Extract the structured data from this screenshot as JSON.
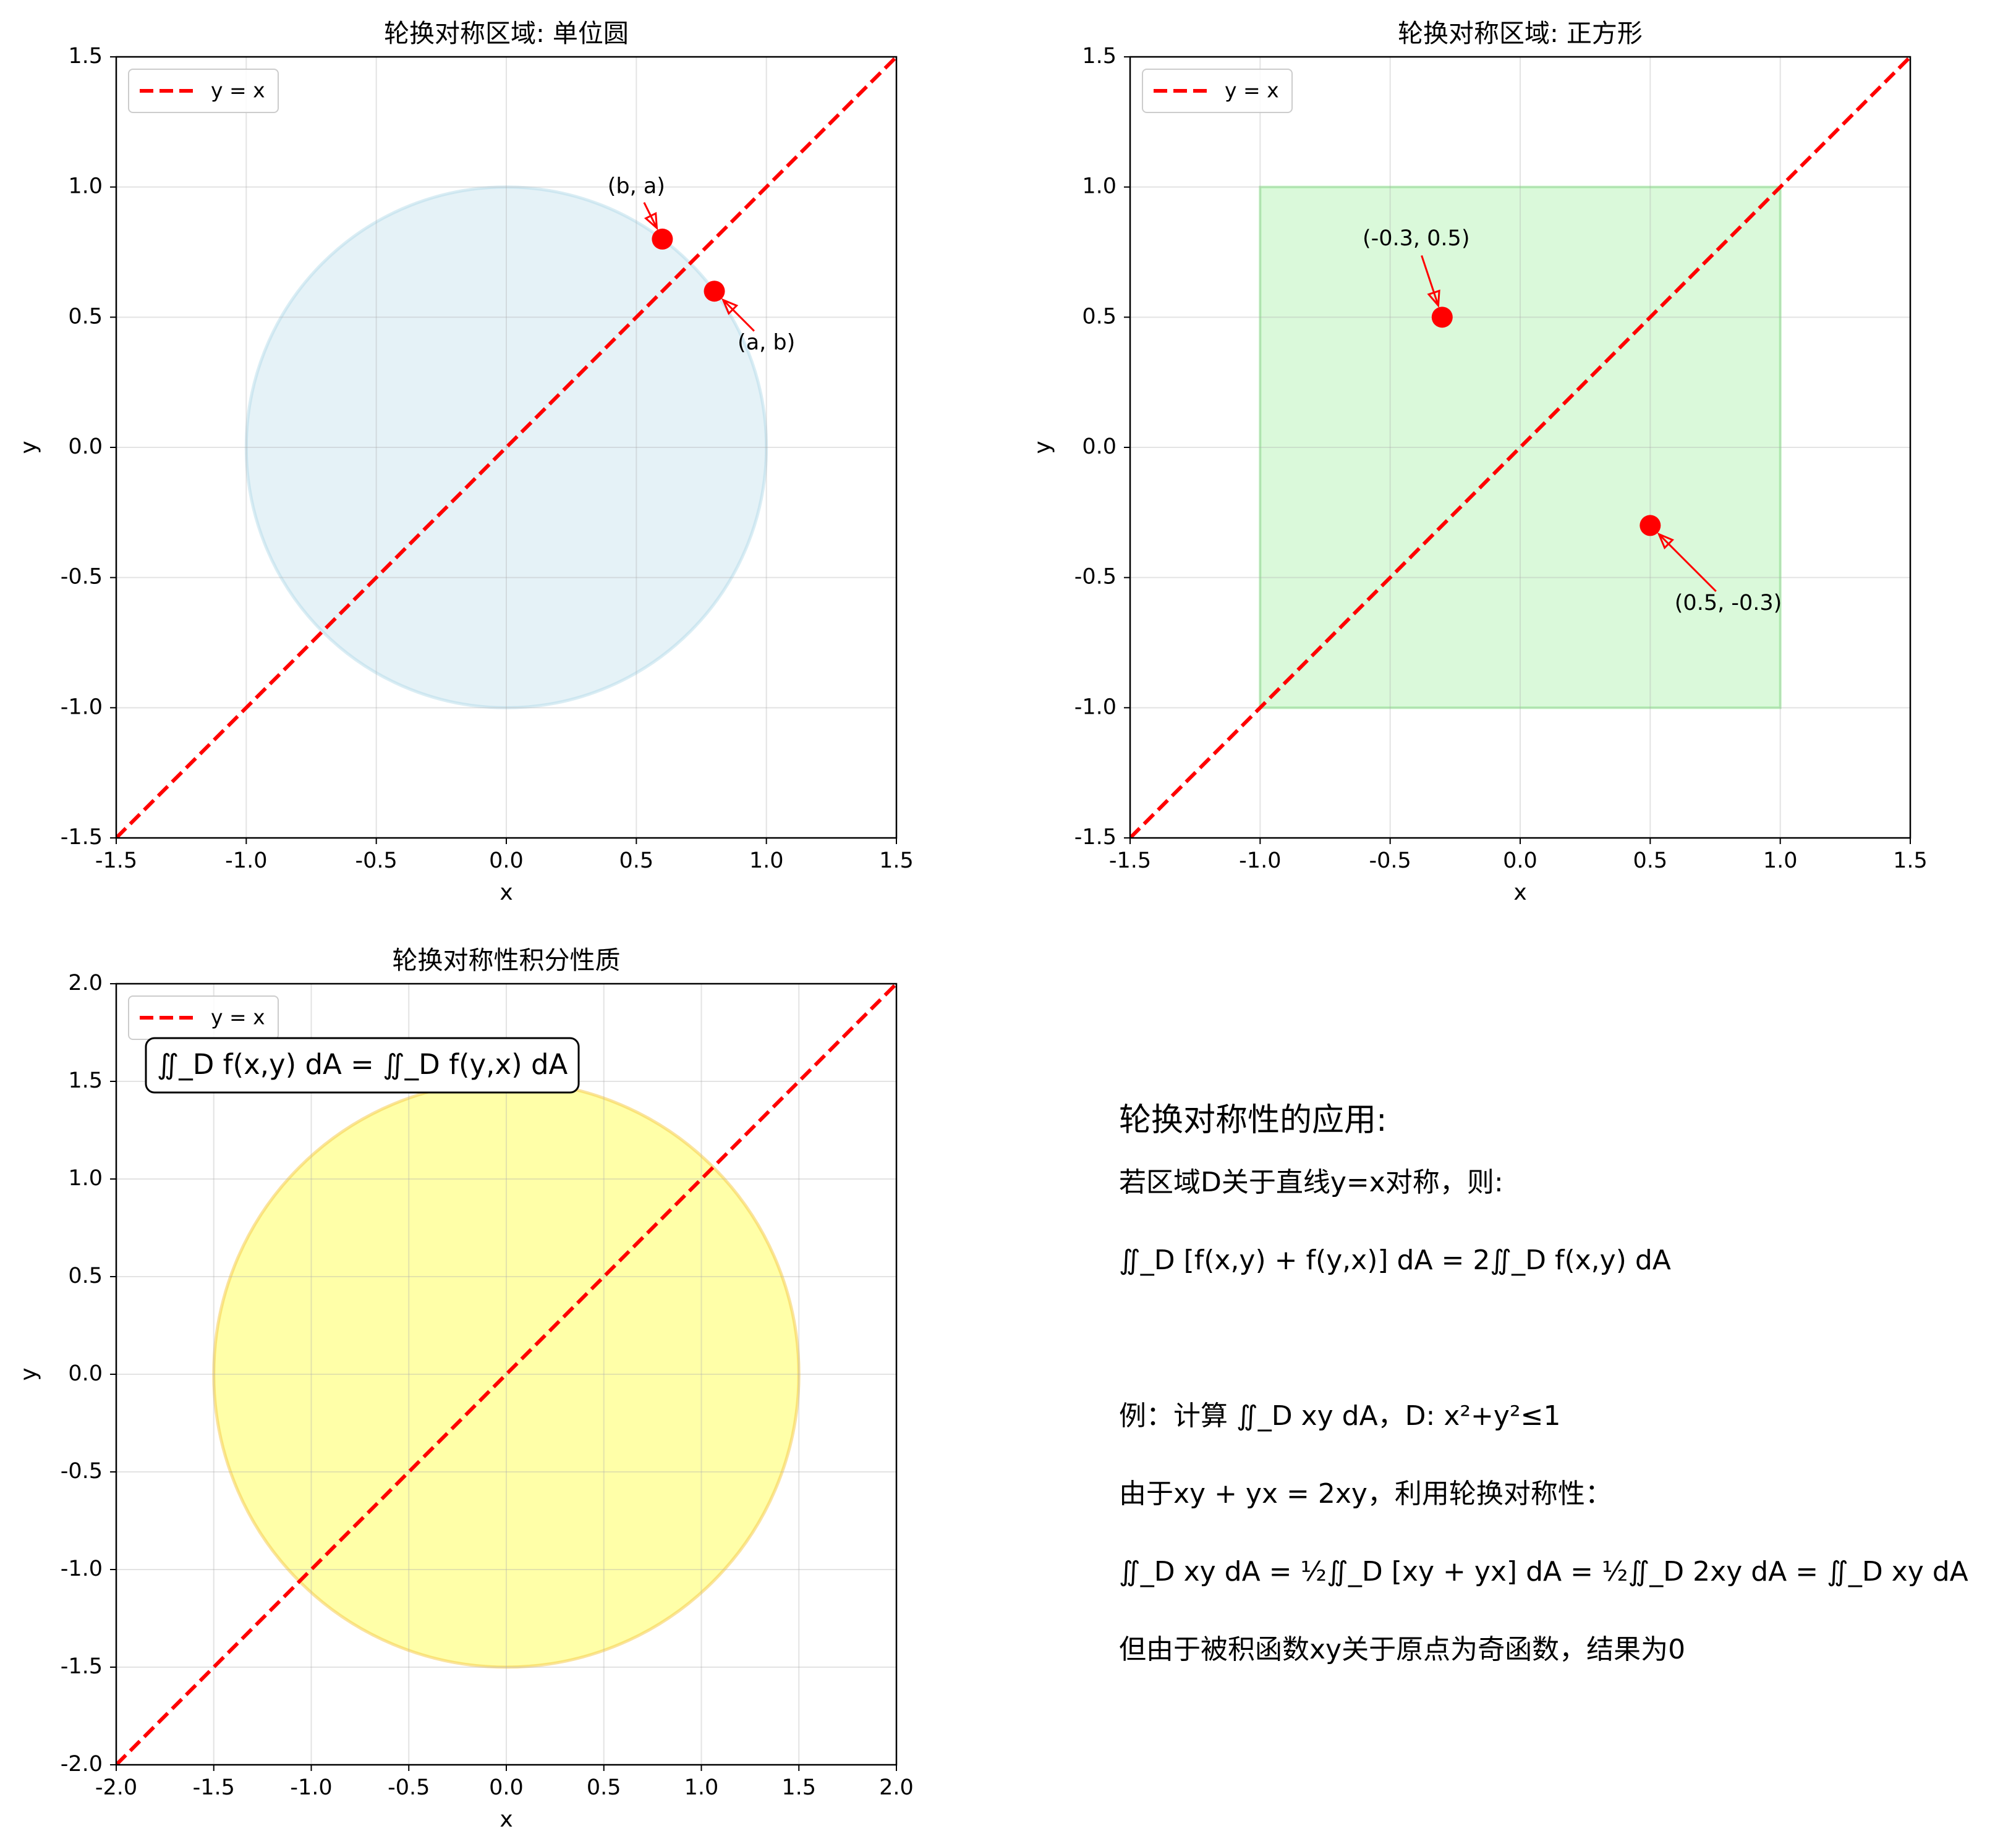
{
  "chart_data": [
    {
      "type": "scatter",
      "title": "轮换对称区域: 单位圆",
      "xlabel": "x",
      "ylabel": "y",
      "xlim": [
        -1.5,
        1.5
      ],
      "ylim": [
        -1.5,
        1.5
      ],
      "xticks": [
        "-1.5",
        "-1.0",
        "-0.5",
        "0.0",
        "0.5",
        "1.0",
        "1.5"
      ],
      "yticks": [
        "-1.5",
        "-1.0",
        "-0.5",
        "0.0",
        "0.5",
        "1.0",
        "1.5"
      ],
      "grid": true,
      "legend": {
        "position": "upper-left",
        "entries": [
          "y = x"
        ]
      },
      "region": {
        "shape": "circle",
        "center": [
          0,
          0
        ],
        "radius": 1,
        "color": "#add8e6"
      },
      "line": {
        "label": "y = x",
        "color": "#ff0000",
        "style": "dashed"
      },
      "points": [
        {
          "x": 0.6,
          "y": 0.8,
          "label": "(b, a)",
          "text_xy": [
            0.5,
            1.0
          ]
        },
        {
          "x": 0.8,
          "y": 0.6,
          "label": "(a, b)",
          "text_xy": [
            1.0,
            0.4
          ]
        }
      ],
      "point_color": "#ff0000"
    },
    {
      "type": "scatter",
      "title": "轮换对称区域: 正方形",
      "xlabel": "x",
      "ylabel": "y",
      "xlim": [
        -1.5,
        1.5
      ],
      "ylim": [
        -1.5,
        1.5
      ],
      "xticks": [
        "-1.5",
        "-1.0",
        "-0.5",
        "0.0",
        "0.5",
        "1.0",
        "1.5"
      ],
      "yticks": [
        "-1.5",
        "-1.0",
        "-0.5",
        "0.0",
        "0.5",
        "1.0",
        "1.5"
      ],
      "grid": true,
      "legend": {
        "position": "upper-left",
        "entries": [
          "y = x"
        ]
      },
      "region": {
        "shape": "square",
        "x": [
          -1,
          1
        ],
        "y": [
          -1,
          1
        ],
        "color": "#90ee90"
      },
      "line": {
        "label": "y = x",
        "color": "#ff0000",
        "style": "dashed"
      },
      "points": [
        {
          "x": -0.3,
          "y": 0.5,
          "label": "(-0.3, 0.5)",
          "text_xy": [
            -0.4,
            0.8
          ]
        },
        {
          "x": 0.5,
          "y": -0.3,
          "label": "(0.5, -0.3)",
          "text_xy": [
            0.8,
            -0.6
          ]
        }
      ],
      "point_color": "#ff0000"
    },
    {
      "type": "scatter",
      "title": "轮换对称性积分性质",
      "xlabel": "x",
      "ylabel": "y",
      "xlim": [
        -2.0,
        2.0
      ],
      "ylim": [
        -2.0,
        2.0
      ],
      "xticks": [
        "-2.0",
        "-1.5",
        "-1.0",
        "-0.5",
        "0.0",
        "0.5",
        "1.0",
        "1.5",
        "2.0"
      ],
      "yticks": [
        "-2.0",
        "-1.5",
        "-1.0",
        "-0.5",
        "0.0",
        "0.5",
        "1.0",
        "1.5",
        "2.0"
      ],
      "grid": true,
      "legend": {
        "position": "upper-left",
        "entries": [
          "y = x"
        ]
      },
      "region": {
        "shape": "circle",
        "center": [
          0,
          0
        ],
        "radius": 1.5,
        "color": "#ffff00"
      },
      "line": {
        "label": "y = x",
        "color": "#ff0000",
        "style": "dashed"
      },
      "annotation": "∬_D f(x,y) dA = ∬_D f(y,x) dA"
    }
  ],
  "notes": {
    "heading": "轮换对称性的应用:",
    "lines": [
      "若区域D关于直线y=x对称，则:",
      "∬_D [f(x,y) + f(y,x)] dA = 2∬_D f(x,y) dA",
      "",
      "例：计算 ∬_D xy dA，D: x²+y²≤1",
      "由于xy + yx = 2xy，利用轮换对称性：",
      "∬_D xy dA = ½∬_D [xy + yx] dA = ½∬_D 2xy dA = ∬_D xy dA",
      "但由于被积函数xy关于原点为奇函数，结果为0"
    ]
  }
}
